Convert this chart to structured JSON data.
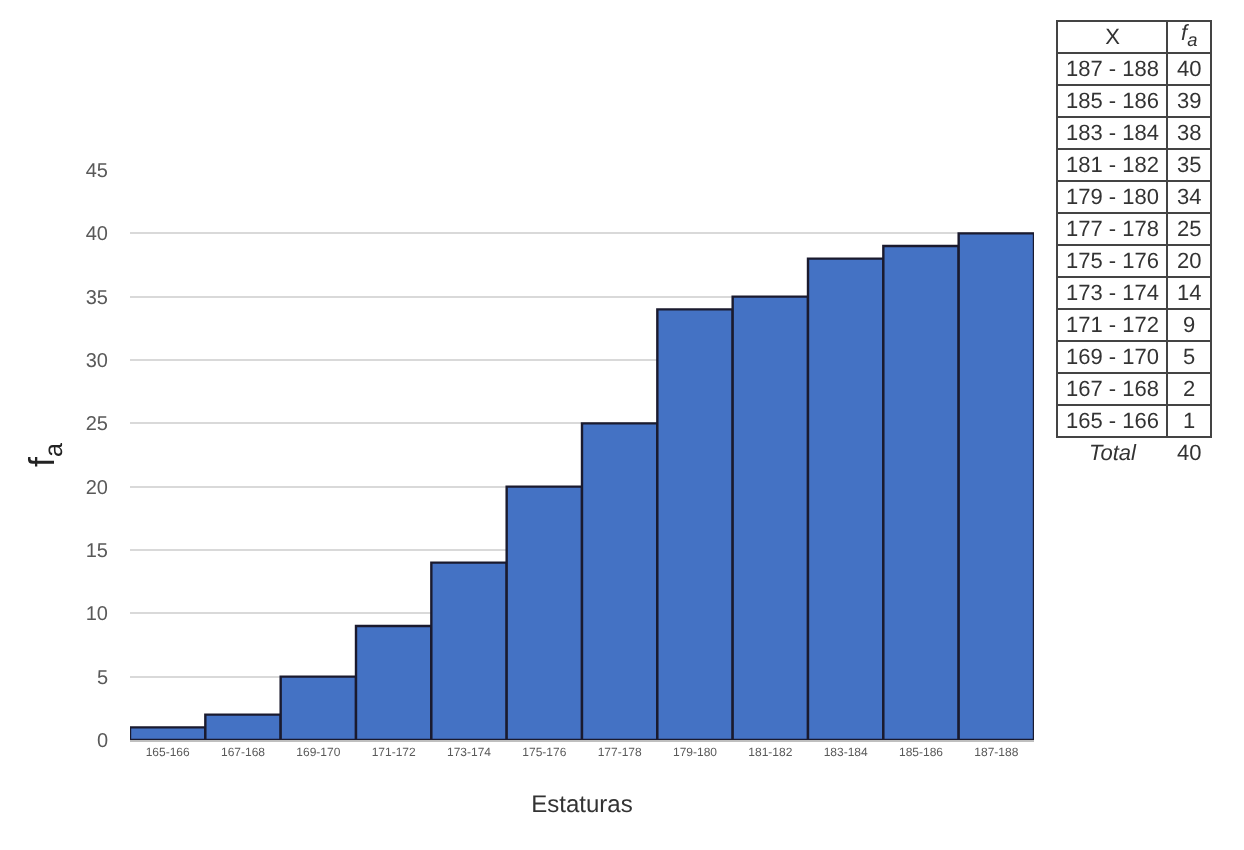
{
  "chart_data": [
    {
      "type": "bar",
      "xlabel": "Estaturas",
      "ylabel": "f$_{a}$",
      "categories": [
        "165-166",
        "167-168",
        "169-170",
        "171-172",
        "173-174",
        "175-176",
        "177-178",
        "179-180",
        "181-182",
        "183-184",
        "185-186",
        "187-188"
      ],
      "values": [
        1,
        2,
        5,
        9,
        14,
        20,
        25,
        34,
        35,
        38,
        39,
        40
      ],
      "color": "#4472c4",
      "ylim": [
        0,
        45
      ],
      "yticks": [
        0,
        5,
        10,
        15,
        20,
        25,
        30,
        35,
        40,
        45
      ],
      "grid": "y"
    },
    {
      "type": "other",
      "annotations": [
        "X",
        "f$_{a}$",
        "187 - 188",
        "40",
        "185 - 186",
        "39",
        "183 - 184",
        "38",
        "181 - 182",
        "35",
        "179 - 180",
        "34",
        "177 - 178",
        "25",
        "175 - 176",
        "20",
        "173 - 174",
        "14",
        "171 - 172",
        "9",
        "169 - 170",
        "5",
        "167 - 168",
        "2",
        "165 - 166",
        "1",
        "Total",
        "40"
      ]
    }
  ]
}
